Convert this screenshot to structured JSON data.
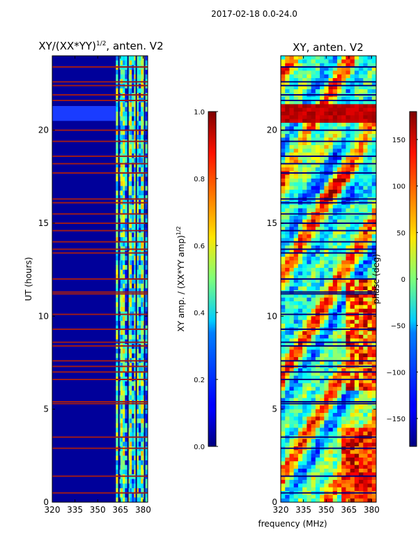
{
  "figure": {
    "suptitle": "2017-02-18 0.0-24.0",
    "xlabel": "frequency (MHz)"
  },
  "chart_data": [
    {
      "type": "heatmap",
      "title_main": "XY/(XX*YY)",
      "title_exp": "1/2",
      "title_tail": ", anten. V2",
      "xlabel": "",
      "ylabel": "UT (hours)",
      "xlim": [
        320,
        383
      ],
      "ylim": [
        0,
        24
      ],
      "xticks": [
        320,
        335,
        350,
        365,
        380
      ],
      "yticks": [
        0,
        5,
        10,
        15,
        20
      ],
      "colorbar": {
        "label_main": "XY amp. / (XX*YY amp)",
        "label_exp": "1/2",
        "range": [
          0.0,
          1.0
        ],
        "ticks": [
          "0.0",
          "0.2",
          "0.4",
          "0.6",
          "0.8",
          "1.0"
        ]
      },
      "flagged_times_hours": [
        0.5,
        1.4,
        2.9,
        3.5,
        5.3,
        5.4,
        6.6,
        7.0,
        7.3,
        7.6,
        8.4,
        8.6,
        9.3,
        10.1,
        11.2,
        11.3,
        12.0,
        13.4,
        13.6,
        14.0,
        14.6,
        15.0,
        15.5,
        16.1,
        16.3,
        17.7,
        18.2,
        18.6,
        19.4,
        20.0,
        21.6,
        21.9,
        22.4,
        22.6,
        23.4
      ],
      "bright_band_hours": [
        20.5,
        21.3
      ]
    },
    {
      "type": "heatmap",
      "title_main": "XY, anten. V2",
      "xlabel": "",
      "ylabel": "",
      "xlim": [
        320,
        383
      ],
      "ylim": [
        0,
        24
      ],
      "xticks": [
        320,
        335,
        350,
        365,
        380
      ],
      "yticks": [
        0,
        5,
        10,
        15,
        20
      ],
      "colorbar": {
        "label_main": "phase (deg)",
        "range": [
          -180,
          180
        ],
        "ticks": [
          "−150",
          "−100",
          "−50",
          "0",
          "50",
          "100",
          "150"
        ]
      }
    }
  ],
  "colors": {
    "jet_low": "#00007f",
    "jet_high": "#7f0000",
    "flag": "#9b1b1b"
  }
}
